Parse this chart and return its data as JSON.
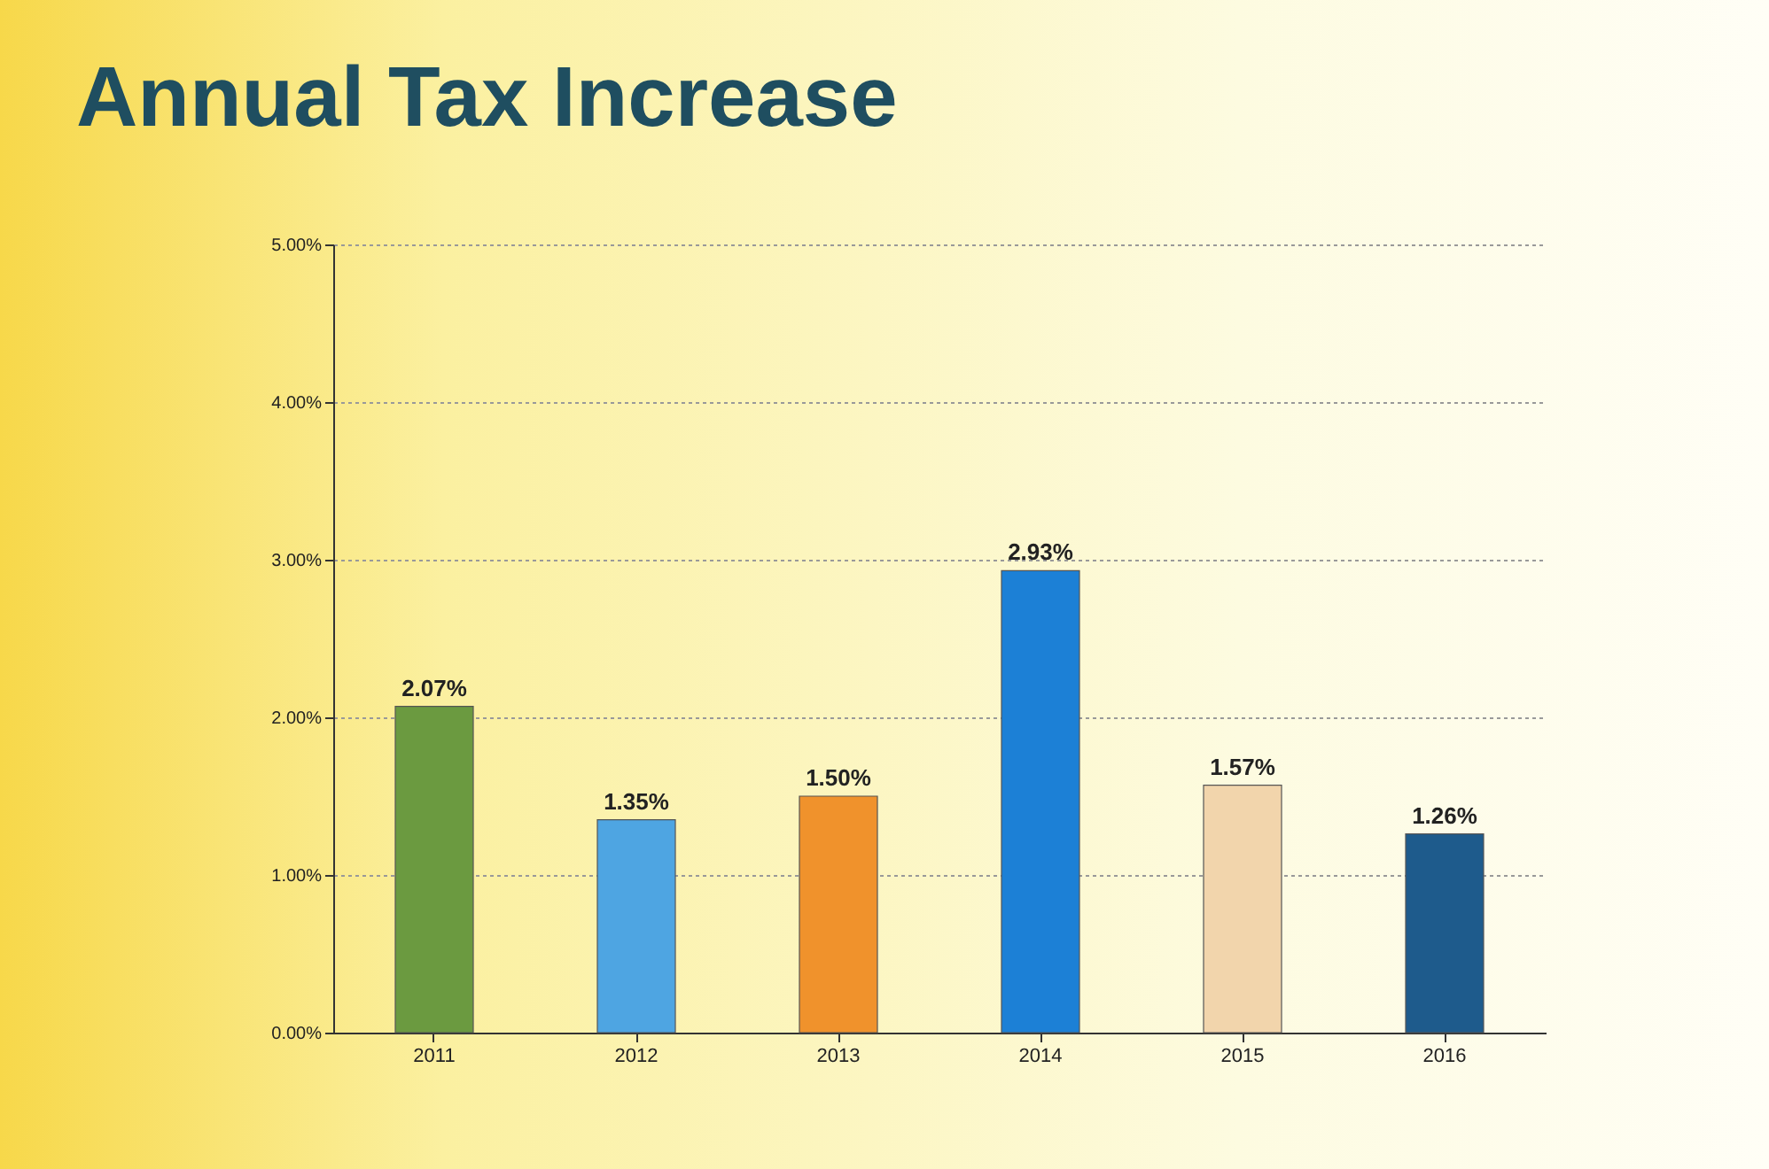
{
  "chart_data": {
    "type": "bar",
    "title": "Annual Tax Increase",
    "categories": [
      "2011",
      "2012",
      "2013",
      "2014",
      "2015",
      "2016"
    ],
    "values": [
      2.07,
      1.35,
      1.5,
      2.93,
      1.57,
      1.26
    ],
    "colors": [
      "#6b9a40",
      "#4ea5e2",
      "#f0922c",
      "#1c80d6",
      "#f2d5ac",
      "#1e5b8c"
    ],
    "value_labels": [
      "2.07%",
      "1.35%",
      "1.50%",
      "2.93%",
      "1.57%",
      "1.26%"
    ],
    "ylim": [
      0,
      5
    ],
    "yticks": [
      {
        "value": 0,
        "label": "0.00%"
      },
      {
        "value": 1,
        "label": "1.00%"
      },
      {
        "value": 2,
        "label": "2.00%"
      },
      {
        "value": 3,
        "label": "3.00%"
      },
      {
        "value": 4,
        "label": "4.00%"
      },
      {
        "value": 5,
        "label": "5.00%"
      }
    ],
    "grid": "y",
    "legend": false
  }
}
